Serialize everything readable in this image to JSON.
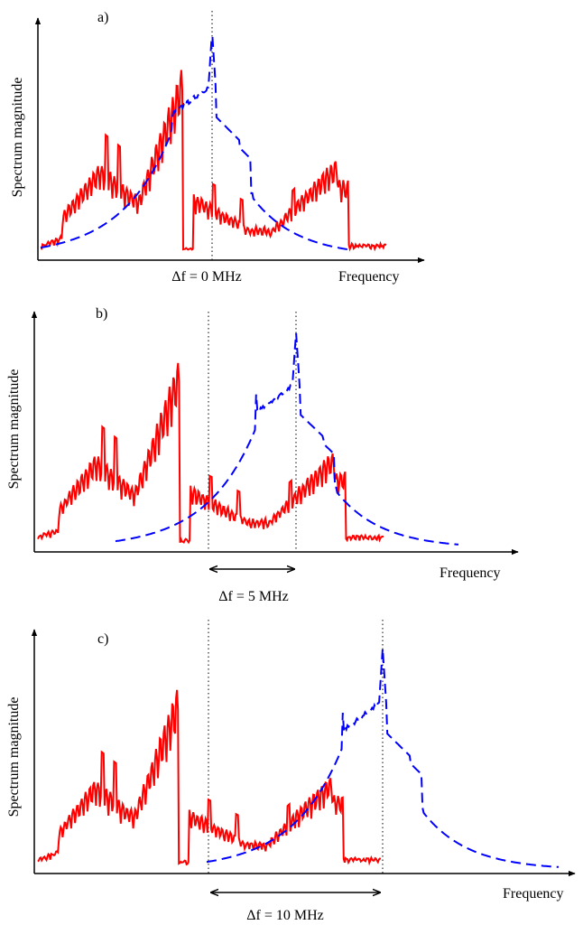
{
  "chart_data": [
    {
      "type": "line",
      "panel_label": "a)",
      "ylabel": "Spectrum magnitude",
      "xlabel": "Frequency",
      "delta_f_label": "Δf = 0 MHz",
      "delta_f_mhz": 0,
      "series": [
        {
          "style": "red-solid",
          "color": "#ff0000"
        },
        {
          "style": "blue-dashed",
          "color": "#0000ff"
        }
      ]
    },
    {
      "type": "line",
      "panel_label": "b)",
      "ylabel": "Spectrum magnitude",
      "xlabel": "Frequency",
      "delta_f_label": "Δf = 5 MHz",
      "delta_f_mhz": 5,
      "series": [
        {
          "style": "red-solid",
          "color": "#ff0000"
        },
        {
          "style": "blue-dashed",
          "color": "#0000ff"
        }
      ]
    },
    {
      "type": "line",
      "panel_label": "c)",
      "ylabel": "Spectrum magnitude",
      "xlabel": "Frequency",
      "delta_f_label": "Δf = 10 MHz",
      "delta_f_mhz": 10,
      "series": [
        {
          "style": "red-solid",
          "color": "#ff0000"
        },
        {
          "style": "blue-dashed",
          "color": "#0000ff"
        }
      ]
    }
  ]
}
